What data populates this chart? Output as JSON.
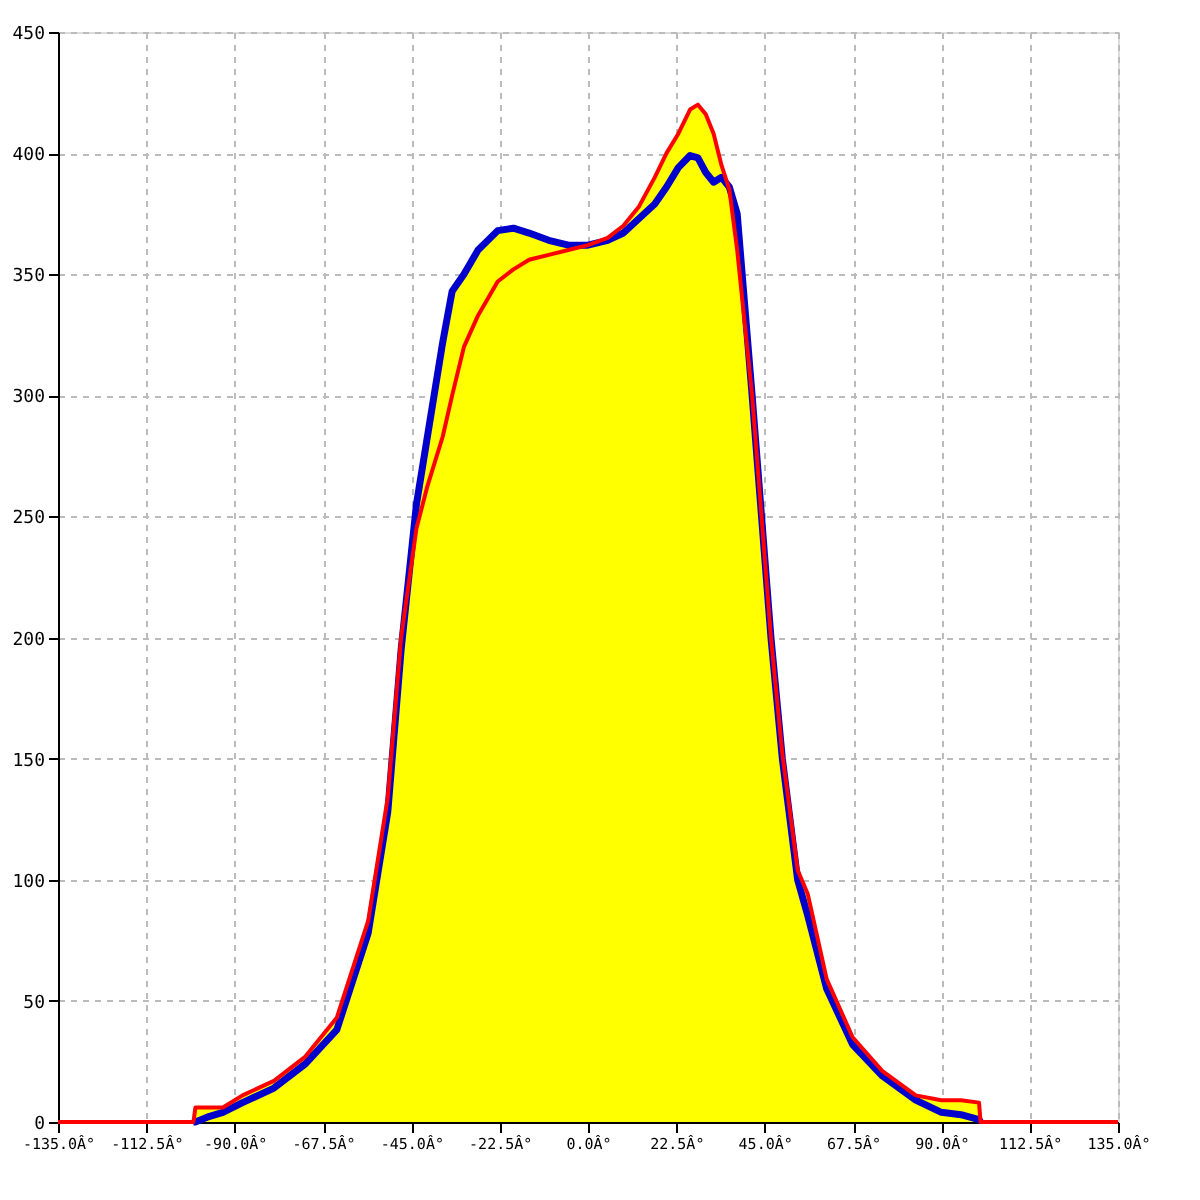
{
  "chart_data": {
    "type": "line",
    "xlim": [
      -135,
      135
    ],
    "ylim": [
      0,
      450
    ],
    "xticks": [
      {
        "value": -135,
        "label": "-135.0Â°"
      },
      {
        "value": -112.5,
        "label": "-112.5Â°"
      },
      {
        "value": -90,
        "label": "-90.0Â°"
      },
      {
        "value": -67.5,
        "label": "-67.5Â°"
      },
      {
        "value": -45,
        "label": "-45.0Â°"
      },
      {
        "value": -22.5,
        "label": "-22.5Â°"
      },
      {
        "value": 0,
        "label": "0.0Â°"
      },
      {
        "value": 22.5,
        "label": "22.5Â°"
      },
      {
        "value": 45,
        "label": "45.0Â°"
      },
      {
        "value": 67.5,
        "label": "67.5Â°"
      },
      {
        "value": 90,
        "label": "90.0Â°"
      },
      {
        "value": 112.5,
        "label": "112.5Â°"
      },
      {
        "value": 135,
        "label": "135.0Â°"
      }
    ],
    "yticks": [
      0,
      50,
      100,
      150,
      200,
      250,
      300,
      350,
      400,
      450
    ],
    "grid": true,
    "marker": "none",
    "line_style": "solid",
    "series": [
      {
        "type": "area",
        "color": "#ffff00",
        "x": [
          -100.5,
          -100,
          -97,
          -93,
          -88,
          -80,
          -72,
          -64,
          -56,
          -51,
          -47.6,
          -43.7,
          -41,
          -37,
          -34.6,
          -31.6,
          -28,
          -23,
          -19,
          -15,
          -10,
          -5,
          0,
          5,
          9,
          13,
          17,
          20,
          23,
          26,
          28,
          30,
          32,
          34,
          36,
          38,
          41.8,
          46.6,
          49.5,
          53.4,
          56,
          60.8,
          67.4,
          75,
          83.5,
          90,
          95,
          99.6,
          100
        ],
        "values": [
          0,
          6,
          6,
          6,
          11,
          17,
          27,
          43,
          83,
          134,
          200,
          255,
          282,
          322,
          343,
          350,
          360,
          368,
          369,
          367,
          364,
          362,
          362,
          365,
          370,
          378,
          390,
          400,
          408,
          418,
          420,
          416,
          408,
          395,
          386,
          375,
          300,
          200,
          152,
          104,
          94,
          59,
          35,
          21,
          11,
          9,
          9,
          8,
          0
        ]
      },
      {
        "color": "#0000cc",
        "x": [
          -100.5,
          -100,
          -97,
          -93,
          -88,
          -80,
          -72,
          -64,
          -56,
          -51,
          -47.6,
          -43.7,
          -41,
          -37,
          -34.6,
          -31.6,
          -28,
          -23,
          -19,
          -15,
          -10,
          -5,
          0,
          5,
          9,
          13,
          17,
          20,
          23,
          26,
          28,
          30,
          32,
          34,
          36,
          38,
          41.8,
          46.6,
          49.5,
          53.4,
          56,
          60.8,
          67.4,
          75,
          83.5,
          90,
          95,
          99.6,
          100
        ],
        "values": [
          0,
          0,
          2,
          4,
          8,
          14,
          24,
          38,
          78,
          128,
          195,
          255,
          282,
          322,
          343,
          350,
          360,
          368,
          369,
          367,
          364,
          362,
          362,
          364,
          367,
          373,
          379,
          386,
          394,
          399,
          398,
          392,
          388,
          390,
          386,
          375,
          300,
          200,
          150,
          100,
          85,
          55,
          32,
          19,
          9,
          4,
          3,
          1,
          0
        ]
      },
      {
        "color": "#ff0000",
        "x": [
          -135,
          -100.5,
          -100,
          -97,
          -93,
          -88,
          -80,
          -72,
          -64,
          -56,
          -51,
          -47.6,
          -43.7,
          -41,
          -37,
          -34.6,
          -31.6,
          -28,
          -23,
          -19,
          -15,
          -10,
          -5,
          0,
          5,
          9,
          13,
          17,
          20,
          23,
          26,
          28,
          30,
          32,
          34,
          36,
          38,
          41.8,
          46.6,
          49.5,
          53.4,
          56,
          60.8,
          67.4,
          75,
          83.5,
          90,
          95,
          99.6,
          100,
          135
        ],
        "values": [
          0,
          0,
          6,
          6,
          6,
          11,
          17,
          27,
          43,
          83,
          134,
          200,
          245,
          262,
          283,
          300,
          320,
          333,
          347,
          352,
          356,
          358,
          360,
          362,
          365,
          370,
          378,
          390,
          400,
          408,
          418,
          420,
          416,
          408,
          395,
          385,
          360,
          300,
          200,
          152,
          104,
          94,
          59,
          35,
          21,
          11,
          9,
          9,
          8,
          0,
          0
        ]
      }
    ]
  }
}
